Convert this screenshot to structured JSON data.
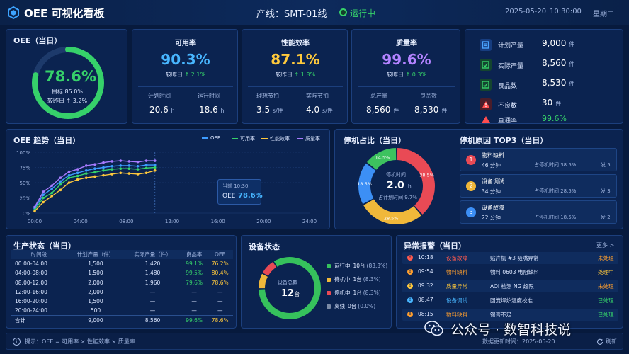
{
  "header": {
    "app_title": "OEE 可视化看板",
    "line_label": "产线：SMT-01线",
    "status": "运行中",
    "date": "2025-05-20",
    "time": "10:30:00",
    "weekday": "星期二"
  },
  "oee_today": {
    "title": "OEE（当日）",
    "value": "78.6%",
    "target_label": "目标 85.0%",
    "compare_label": "较昨日 ↑ 3.2%",
    "fraction": 0.786
  },
  "kpis": [
    {
      "title": "可用率",
      "value": "90.3%",
      "compare": "较昨日",
      "delta": "↑ 2.1%",
      "color": "#48b6ff",
      "sub": [
        {
          "label": "计划时间",
          "value": "20.6",
          "unit": "h"
        },
        {
          "label": "运行时间",
          "value": "18.6",
          "unit": "h"
        }
      ]
    },
    {
      "title": "性能效率",
      "value": "87.1%",
      "compare": "较昨日",
      "delta": "↑ 1.8%",
      "color": "#ffc93c",
      "sub": [
        {
          "label": "理想节拍",
          "value": "3.5",
          "unit": "s/件"
        },
        {
          "label": "实际节拍",
          "value": "4.0",
          "unit": "s/件"
        }
      ]
    },
    {
      "title": "质量率",
      "value": "99.6%",
      "compare": "较昨日",
      "delta": "↑ 0.3%",
      "color": "#b383ff",
      "sub": [
        {
          "label": "总产量",
          "value": "8,560",
          "unit": "件"
        },
        {
          "label": "良品数",
          "value": "8,530",
          "unit": "件"
        }
      ]
    }
  ],
  "production_summary": [
    {
      "label": "计划产量",
      "value": "9,000",
      "unit": "件",
      "icon": "plan-document-icon",
      "color": "#2f8cff"
    },
    {
      "label": "实际产量",
      "value": "8,560",
      "unit": "件",
      "icon": "actual-output-icon",
      "color": "#2fd36b"
    },
    {
      "label": "良品数",
      "value": "8,530",
      "unit": "件",
      "icon": "good-product-icon",
      "color": "#2fd36b"
    },
    {
      "label": "不良数",
      "value": "30",
      "unit": "件",
      "icon": "defect-warning-icon",
      "color": "#ff4d4f"
    },
    {
      "label": "直通率",
      "value": "99.6%",
      "unit": "",
      "icon": "pass-rate-icon",
      "color": "#ff4d4f"
    }
  ],
  "trend": {
    "title": "OEE 趋势（当日）",
    "tooltip_time": "当前 10:30",
    "tooltip_label": "OEE",
    "tooltip_value": "78.6%"
  },
  "chart_data": {
    "type": "line",
    "x": [
      "00:00",
      "00:45",
      "01:30",
      "02:15",
      "03:00",
      "03:45",
      "04:30",
      "05:15",
      "06:00",
      "06:45",
      "07:30",
      "08:15",
      "09:00",
      "09:45",
      "10:30"
    ],
    "xticks": [
      "00:00",
      "04:00",
      "08:00",
      "12:00",
      "16:00",
      "20:00",
      "24:00"
    ],
    "yticks": [
      "0%",
      "25%",
      "50%",
      "75%",
      "100%"
    ],
    "ylim": [
      0,
      100
    ],
    "legend_position": "top-right",
    "series": [
      {
        "name": "OEE",
        "color": "#3d9bff",
        "values": [
          8,
          30,
          40,
          52,
          62,
          66,
          70,
          73,
          75,
          77,
          78,
          78,
          77,
          79,
          79
        ]
      },
      {
        "name": "可用率",
        "color": "#36d16a",
        "values": [
          5,
          25,
          33,
          47,
          58,
          61,
          65,
          67,
          70,
          72,
          73,
          73,
          72,
          74,
          75
        ]
      },
      {
        "name": "性能效率",
        "color": "#ffc93c",
        "values": [
          3,
          18,
          28,
          38,
          50,
          55,
          58,
          60,
          62,
          64,
          66,
          65,
          64,
          66,
          70
        ]
      },
      {
        "name": "质量率",
        "color": "#a77bff",
        "values": [
          10,
          35,
          45,
          58,
          68,
          72,
          78,
          80,
          83,
          85,
          86,
          85,
          84,
          86,
          86
        ]
      }
    ]
  },
  "downtime_share": {
    "title": "停机占比（当日）",
    "center_label": "停机时间",
    "center_value": "2.0",
    "center_unit": "h",
    "center_sub": "占计划时间 9.7%",
    "slices": [
      {
        "label": "38.5%",
        "value": 38.5,
        "color": "#e94a55"
      },
      {
        "label": "28.5%",
        "value": 28.5,
        "color": "#f0b83a"
      },
      {
        "label": "18.5%",
        "value": 18.5,
        "color": "#3c8ff5"
      },
      {
        "label": "14.5%",
        "value": 14.5,
        "color": "#3dc25f"
      }
    ]
  },
  "downtime_top3": {
    "title": "停机原因 TOP3（当日）",
    "items": [
      {
        "rank": "1",
        "name": "物料缺料",
        "duration": "46 分钟",
        "share": "占停机时间 38.5%",
        "count": "发 5",
        "color": "#e94a55"
      },
      {
        "rank": "2",
        "name": "设备调试",
        "duration": "34 分钟",
        "share": "占停机时间 28.5%",
        "count": "发 3",
        "color": "#f0b83a"
      },
      {
        "rank": "3",
        "name": "设备故障",
        "duration": "22 分钟",
        "share": "占停机时间 18.5%",
        "count": "发 2",
        "color": "#3c8ff5"
      }
    ]
  },
  "production_status": {
    "title": "生产状态（当日）",
    "columns": [
      "时间段",
      "计划产量（件）",
      "实际产量（件）",
      "良品率",
      "OEE"
    ],
    "rows": [
      {
        "cells": [
          "00:00-04:00",
          "1,500",
          "1,420",
          "99.1%",
          "76.2%"
        ]
      },
      {
        "cells": [
          "04:00-08:00",
          "1,500",
          "1,480",
          "99.5%",
          "80.4%"
        ]
      },
      {
        "cells": [
          "08:00-12:00",
          "2,000",
          "1,960",
          "79.6%",
          "78.6%"
        ]
      },
      {
        "cells": [
          "12:00-16:00",
          "2,000",
          "—",
          "—",
          "—"
        ]
      },
      {
        "cells": [
          "16:00-20:00",
          "1,500",
          "—",
          "—",
          "—"
        ]
      },
      {
        "cells": [
          "20:00-24:00",
          "500",
          "—",
          "—",
          "—"
        ]
      },
      {
        "cells": [
          "合计",
          "9,000",
          "8,560",
          "99.6%",
          "78.6%"
        ]
      }
    ]
  },
  "equipment": {
    "title": "设备状态",
    "center_label": "设备总数",
    "center_value": "12",
    "center_unit": "台",
    "items": [
      {
        "label": "运行中",
        "count": "10台",
        "pct": "(83.3%)",
        "value": 83.3,
        "color": "#36c15c"
      },
      {
        "label": "待机中",
        "count": "1台",
        "pct": "(8.3%)",
        "value": 8.3,
        "color": "#f0b83a"
      },
      {
        "label": "停机中",
        "count": "1台",
        "pct": "(8.3%)",
        "value": 8.3,
        "color": "#e94a55"
      },
      {
        "label": "离线",
        "count": "0台",
        "pct": "(0.0%)",
        "value": 0,
        "color": "#7b8aa6"
      }
    ]
  },
  "alarms": {
    "title": "异常报警（当日）",
    "more": "更多 >",
    "items": [
      {
        "time": "10:18",
        "type": "设备故障",
        "desc": "贴片机 #3 吸嘴异常",
        "status": "未处理",
        "color": "#ff5a4f",
        "status_color": "#ff9f2e"
      },
      {
        "time": "09:54",
        "type": "物料缺料",
        "desc": "物料 0603 电阻缺料",
        "status": "处理中",
        "color": "#ff9f2e",
        "status_color": "#ffc93c"
      },
      {
        "time": "09:32",
        "type": "质量异常",
        "desc": "AOI 检测 NG 超限",
        "status": "未处理",
        "color": "#ffc93c",
        "status_color": "#ff9f2e"
      },
      {
        "time": "08:47",
        "type": "设备调试",
        "desc": "回流焊炉温度校准",
        "status": "已处理",
        "color": "#48b6ff",
        "status_color": "#36d16a"
      },
      {
        "time": "08:15",
        "type": "物料缺料",
        "desc": "锡膏不足",
        "status": "已处理",
        "color": "#ff9f2e",
        "status_color": "#36d16a"
      }
    ]
  },
  "footer": {
    "hint": "提示：OEE = 可用率 × 性能效率 × 质量率",
    "update": "数据更新时间：2025-05-20",
    "refresh": "刷新"
  },
  "watermark": "公众号 · 数智科技说"
}
